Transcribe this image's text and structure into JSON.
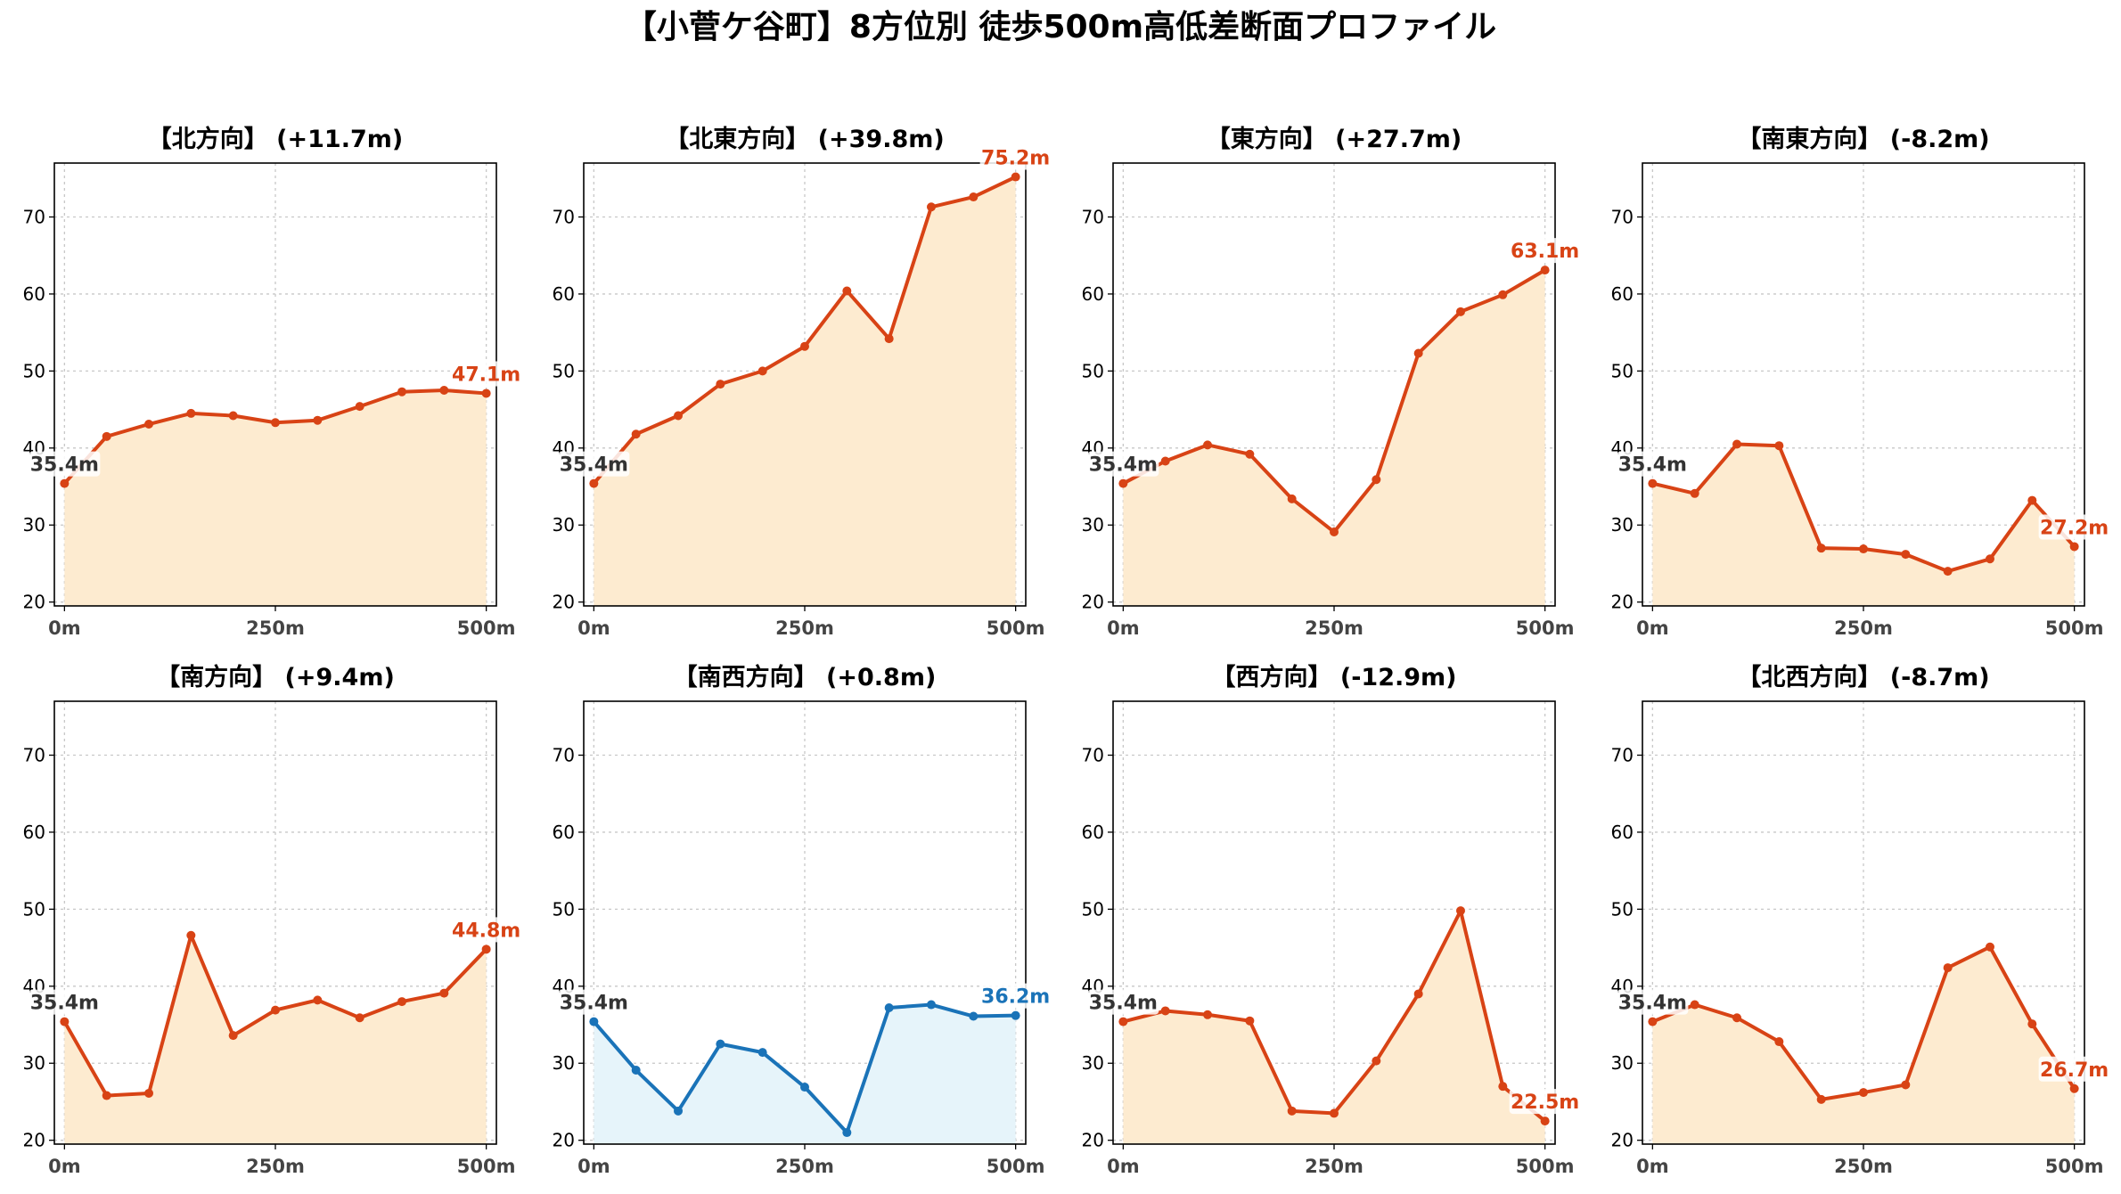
{
  "title": "【小菅ケ谷町】8方位別 徒歩500m高低差断面プロファイル",
  "colors": {
    "line": "#d84315",
    "fill": "#fdebd0",
    "line_alt": "#1a73b8",
    "fill_alt": "#e6f4fa",
    "start_label": "#333333"
  },
  "chart_data": [
    {
      "type": "area",
      "title": "【北方向】 (+11.7m)",
      "x": [
        0,
        50,
        100,
        150,
        200,
        250,
        300,
        350,
        400,
        450,
        500
      ],
      "x_tick_labels": [
        "0m",
        "250m",
        "500m"
      ],
      "y_ticks": [
        20,
        30,
        40,
        50,
        60,
        70
      ],
      "ylim": [
        19.5,
        77
      ],
      "xlim": [
        -12,
        512
      ],
      "grid": true,
      "values": [
        35.4,
        41.5,
        43.1,
        44.5,
        44.2,
        43.3,
        43.6,
        45.4,
        47.3,
        47.5,
        47.1
      ],
      "start_label": "35.4m",
      "end_label": "47.1m",
      "color_scheme": "orange"
    },
    {
      "type": "area",
      "title": "【北東方向】 (+39.8m)",
      "x": [
        0,
        50,
        100,
        150,
        200,
        250,
        300,
        350,
        400,
        450,
        500
      ],
      "x_tick_labels": [
        "0m",
        "250m",
        "500m"
      ],
      "y_ticks": [
        20,
        30,
        40,
        50,
        60,
        70
      ],
      "ylim": [
        19.5,
        77
      ],
      "xlim": [
        -12,
        512
      ],
      "grid": true,
      "values": [
        35.4,
        41.8,
        44.2,
        48.3,
        50.0,
        53.2,
        60.4,
        54.2,
        71.3,
        72.6,
        75.2
      ],
      "start_label": "35.4m",
      "end_label": "75.2m",
      "color_scheme": "orange"
    },
    {
      "type": "area",
      "title": "【東方向】 (+27.7m)",
      "x": [
        0,
        50,
        100,
        150,
        200,
        250,
        300,
        350,
        400,
        450,
        500
      ],
      "x_tick_labels": [
        "0m",
        "250m",
        "500m"
      ],
      "y_ticks": [
        20,
        30,
        40,
        50,
        60,
        70
      ],
      "ylim": [
        19.5,
        77
      ],
      "xlim": [
        -12,
        512
      ],
      "grid": true,
      "values": [
        35.4,
        38.3,
        40.4,
        39.2,
        33.4,
        29.1,
        35.9,
        52.3,
        57.7,
        59.9,
        63.1
      ],
      "start_label": "35.4m",
      "end_label": "63.1m",
      "color_scheme": "orange"
    },
    {
      "type": "area",
      "title": "【南東方向】 (-8.2m)",
      "x": [
        0,
        50,
        100,
        150,
        200,
        250,
        300,
        350,
        400,
        450,
        500
      ],
      "x_tick_labels": [
        "0m",
        "250m",
        "500m"
      ],
      "y_ticks": [
        20,
        30,
        40,
        50,
        60,
        70
      ],
      "ylim": [
        19.5,
        77
      ],
      "xlim": [
        -12,
        512
      ],
      "grid": true,
      "values": [
        35.4,
        34.1,
        40.5,
        40.3,
        27.0,
        26.9,
        26.2,
        24.0,
        25.6,
        33.2,
        27.2
      ],
      "start_label": "35.4m",
      "end_label": "27.2m",
      "color_scheme": "orange"
    },
    {
      "type": "area",
      "title": "【南方向】 (+9.4m)",
      "x": [
        0,
        50,
        100,
        150,
        200,
        250,
        300,
        350,
        400,
        450,
        500
      ],
      "x_tick_labels": [
        "0m",
        "250m",
        "500m"
      ],
      "y_ticks": [
        20,
        30,
        40,
        50,
        60,
        70
      ],
      "ylim": [
        19.5,
        77
      ],
      "xlim": [
        -12,
        512
      ],
      "grid": true,
      "values": [
        35.4,
        25.8,
        26.1,
        46.6,
        33.6,
        36.9,
        38.2,
        35.9,
        38.0,
        39.1,
        44.8
      ],
      "start_label": "35.4m",
      "end_label": "44.8m",
      "color_scheme": "orange"
    },
    {
      "type": "area",
      "title": "【南西方向】 (+0.8m)",
      "x": [
        0,
        50,
        100,
        150,
        200,
        250,
        300,
        350,
        400,
        450,
        500
      ],
      "x_tick_labels": [
        "0m",
        "250m",
        "500m"
      ],
      "y_ticks": [
        20,
        30,
        40,
        50,
        60,
        70
      ],
      "ylim": [
        19.5,
        77
      ],
      "xlim": [
        -12,
        512
      ],
      "grid": true,
      "values": [
        35.4,
        29.1,
        23.8,
        32.5,
        31.4,
        26.9,
        21.0,
        37.2,
        37.6,
        36.1,
        36.2
      ],
      "start_label": "35.4m",
      "end_label": "36.2m",
      "color_scheme": "blue"
    },
    {
      "type": "area",
      "title": "【西方向】 (-12.9m)",
      "x": [
        0,
        50,
        100,
        150,
        200,
        250,
        300,
        350,
        400,
        450,
        500
      ],
      "x_tick_labels": [
        "0m",
        "250m",
        "500m"
      ],
      "y_ticks": [
        20,
        30,
        40,
        50,
        60,
        70
      ],
      "ylim": [
        19.5,
        77
      ],
      "xlim": [
        -12,
        512
      ],
      "grid": true,
      "values": [
        35.4,
        36.8,
        36.3,
        35.5,
        23.8,
        23.5,
        30.3,
        39.0,
        49.8,
        27.0,
        22.5
      ],
      "start_label": "35.4m",
      "end_label": "22.5m",
      "color_scheme": "orange"
    },
    {
      "type": "area",
      "title": "【北西方向】 (-8.7m)",
      "x": [
        0,
        50,
        100,
        150,
        200,
        250,
        300,
        350,
        400,
        450,
        500
      ],
      "x_tick_labels": [
        "0m",
        "250m",
        "500m"
      ],
      "y_ticks": [
        20,
        30,
        40,
        50,
        60,
        70
      ],
      "ylim": [
        19.5,
        77
      ],
      "xlim": [
        -12,
        512
      ],
      "grid": true,
      "values": [
        35.4,
        37.6,
        35.9,
        32.8,
        25.3,
        26.2,
        27.2,
        42.4,
        45.1,
        35.1,
        26.7
      ],
      "start_label": "35.4m",
      "end_label": "26.7m",
      "color_scheme": "orange"
    }
  ]
}
